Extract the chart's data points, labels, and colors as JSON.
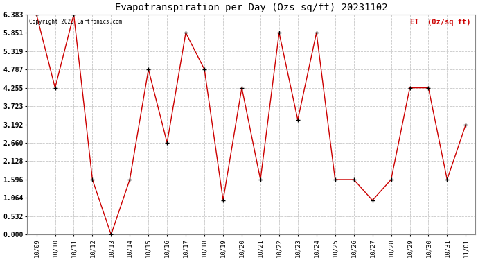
{
  "title": "Evapotranspiration per Day (Ozs sq/ft) 20231102",
  "legend_label": "ET  (0z/sq ft)",
  "copyright": "Copyright 2023 Cartronics.com",
  "x_labels": [
    "10/09",
    "10/10",
    "10/11",
    "10/12",
    "10/13",
    "10/14",
    "10/15",
    "10/16",
    "10/17",
    "10/18",
    "10/19",
    "10/20",
    "10/21",
    "10/22",
    "10/23",
    "10/24",
    "10/25",
    "10/26",
    "10/27",
    "10/28",
    "10/29",
    "10/30",
    "10/31",
    "11/01"
  ],
  "y_values": [
    6.383,
    4.255,
    6.383,
    1.596,
    0.0,
    1.596,
    4.787,
    2.66,
    5.851,
    4.787,
    0.996,
    4.255,
    1.596,
    5.851,
    3.325,
    5.851,
    1.596,
    1.596,
    0.996,
    1.596,
    4.255,
    4.255,
    1.596,
    3.192
  ],
  "y_ticks": [
    0.0,
    0.532,
    1.064,
    1.596,
    2.128,
    2.66,
    3.192,
    3.723,
    4.255,
    4.787,
    5.319,
    5.851,
    6.383
  ],
  "y_min": 0.0,
  "y_max": 6.383,
  "line_color": "#cc0000",
  "marker": "+",
  "marker_color": "#000000",
  "bg_color": "#ffffff",
  "grid_color": "#c8c8c8",
  "title_color": "#000000",
  "legend_color": "#cc0000",
  "copyright_color": "#000000"
}
